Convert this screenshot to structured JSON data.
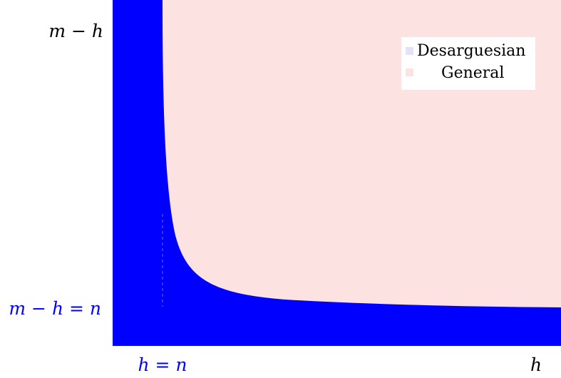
{
  "chart_data": {
    "type": "area",
    "title": "",
    "x_axis_label": "h",
    "y_axis_label": "m − h",
    "x_marker_label": "h = n",
    "y_marker_label": "m − h = n",
    "grid": false,
    "legend_placement": "top-right",
    "legend": [
      {
        "name": "Desarguesian",
        "color": "#0000ff",
        "swatch_color": "#e2e2fb"
      },
      {
        "name": "General",
        "color": "#fde2e2",
        "swatch_color": "#fde2e2"
      }
    ],
    "regions": [
      {
        "series": "General",
        "description_of_shape": "region above the hyperbola-like boundary curve"
      },
      {
        "series": "Desarguesian",
        "description_of_shape": "region below the boundary curve, bounded by h = n and m − h = n"
      }
    ]
  },
  "colors": {
    "desarguesian": "#0000ff",
    "general": "#fde2e2",
    "axis_label": "#000000",
    "marker_label": "#0000ff"
  }
}
